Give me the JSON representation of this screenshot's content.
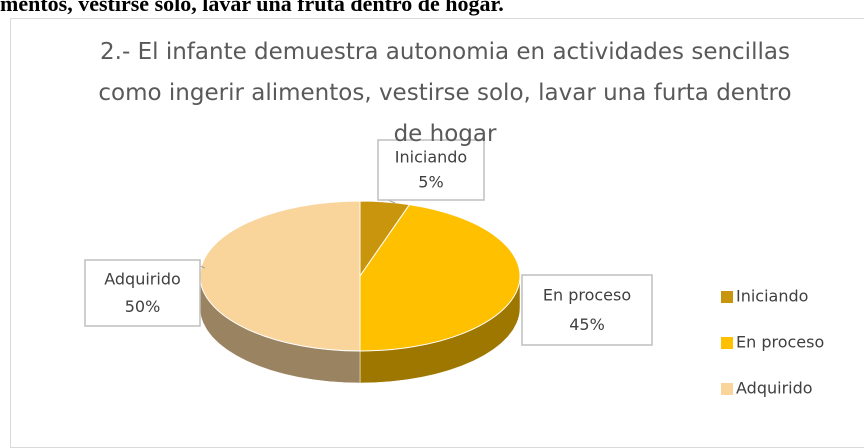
{
  "heading": "mentos, vestirse solo, lavar una fruta dentro de hogar.",
  "chart_data": {
    "type": "pie",
    "three_d": true,
    "title": "2.- El infante demuestra autonomia en actividades sencillas como ingerir alimentos, vestirse solo, lavar una furta dentro de hogar",
    "categories": [
      "Iniciando",
      "En proceso",
      "Adquirido"
    ],
    "values": [
      5,
      45,
      50
    ],
    "value_labels": [
      "5%",
      "45%",
      "50%"
    ],
    "colors": [
      "#c9950c",
      "#ffc000",
      "#f9d49b"
    ],
    "legend": "right"
  }
}
